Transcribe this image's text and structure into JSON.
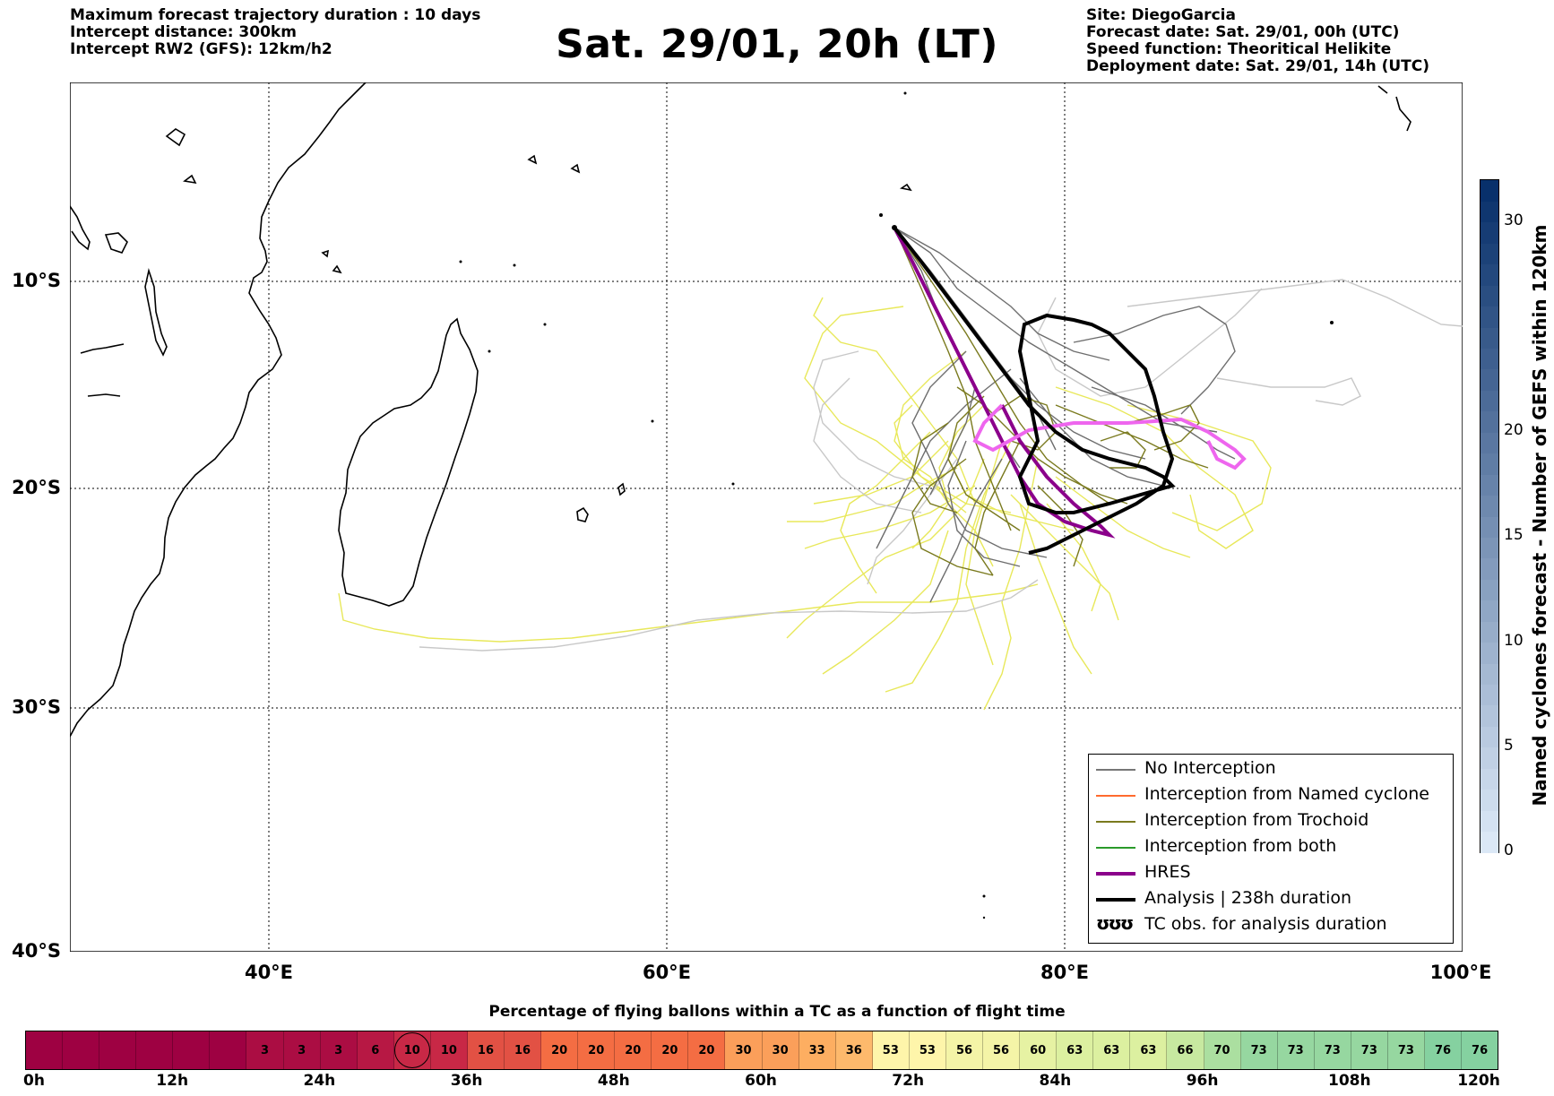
{
  "header_left": {
    "line1": "Maximum forecast trajectory duration : 10 days",
    "line2": "Intercept distance: 300km",
    "line3": "Intercept RW2 (GFS):  12km/h2"
  },
  "title": "Sat. 29/01, 20h (LT)",
  "header_right": {
    "line1": "Site: DiegoGarcia",
    "line2": "Forecast date: Sat. 29/01, 00h (UTC)",
    "line3": "Speed function: Theoritical Helikite",
    "line4": "Deployment date: Sat. 29/01, 14h (UTC)"
  },
  "map": {
    "lat_labels": [
      "10°S",
      "20°S",
      "30°S",
      "40°S"
    ],
    "lon_labels": [
      "40°E",
      "60°E",
      "80°E",
      "100°E"
    ],
    "lon_range": [
      30,
      100
    ],
    "lat_range": [
      -40,
      -0.3
    ],
    "gridlines": "dotted",
    "colors": {
      "no_interception": "#777777",
      "named_cyclone": "#ff6a2e",
      "trochoid": "#7a7a1e",
      "both": "#2a9a2a",
      "hres": "#8b008b",
      "analysis": "#000000",
      "ensemble_light": "#e8e85a",
      "grey_light": "#c8c8c8",
      "hres_pink": "#ee66ee"
    }
  },
  "legend": {
    "items": [
      {
        "label": "No Interception",
        "color": "#777777",
        "style": "thin"
      },
      {
        "label": "Interception from Named cyclone",
        "color": "#ff6a2e",
        "style": "thin"
      },
      {
        "label": "Interception from Trochoid",
        "color": "#7a7a1e",
        "style": "thin"
      },
      {
        "label": "Interception from both",
        "color": "#2a9a2a",
        "style": "thin"
      },
      {
        "label": "HRES",
        "color": "#8b008b",
        "style": "thick"
      },
      {
        "label": "Analysis | 238h duration",
        "color": "#000000",
        "style": "thick"
      },
      {
        "label": "TC obs. for analysis duration",
        "glyph": "ʊʊʊ",
        "style": "glyph"
      }
    ]
  },
  "colorbar": {
    "label": "Named cyclones forecast - Number of GEFS within 120km",
    "ticks": [
      "0",
      "5",
      "10",
      "15",
      "20",
      "30"
    ],
    "tick_values": [
      0,
      5,
      10,
      15,
      20,
      30
    ],
    "max": 32,
    "color_low": "#dbe8f6",
    "color_high": "#08306b"
  },
  "percentage_bar": {
    "title": "Percentage of flying ballons within a TC as a function of flight time",
    "cells": [
      "",
      "",
      "",
      "",
      "",
      "",
      "3",
      "3",
      "3",
      "6",
      "10",
      "10",
      "16",
      "16",
      "20",
      "20",
      "20",
      "20",
      "20",
      "30",
      "30",
      "33",
      "36",
      "53",
      "53",
      "56",
      "56",
      "60",
      "63",
      "63",
      "63",
      "66",
      "70",
      "73",
      "73",
      "73",
      "73",
      "73",
      "76",
      "76"
    ],
    "values": [
      0,
      0,
      0,
      0,
      0,
      0,
      3,
      3,
      3,
      6,
      10,
      10,
      16,
      16,
      20,
      20,
      20,
      20,
      20,
      30,
      30,
      33,
      36,
      53,
      53,
      56,
      56,
      60,
      63,
      63,
      63,
      66,
      70,
      73,
      73,
      73,
      73,
      73,
      76,
      76
    ],
    "highlighted_index": 10,
    "ticks": [
      "0h",
      "12h",
      "24h",
      "36h",
      "48h",
      "60h",
      "72h",
      "84h",
      "96h",
      "108h",
      "120h"
    ]
  }
}
